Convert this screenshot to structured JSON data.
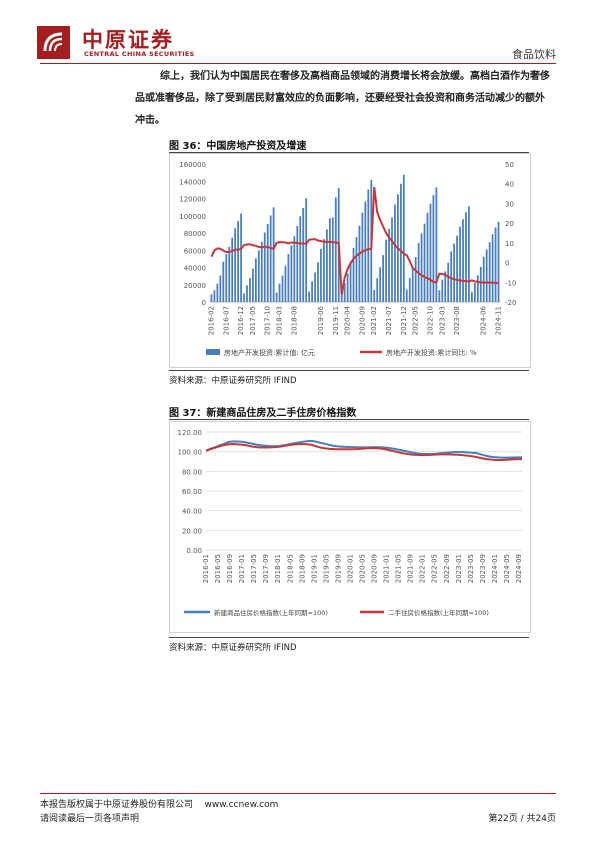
{
  "header": {
    "logo_text_cn": "中原证券",
    "logo_text_en": "CENTRAL CHINA SECURITIES",
    "category": "食品饮料"
  },
  "paragraph": {
    "line1": "综上，我们认为中国居民在奢侈及高档商品领域的消费增长将会放缓。高档白酒作为奢侈",
    "line2": "品或准奢侈品，除了受到居民财富效应的负面影响，还要经受社会投资和商务活动减少的额外",
    "line3": "冲击。"
  },
  "figure36": {
    "title": "图 36：中国房地产投资及增速",
    "source": "资料来源：中原证券研究所  IFIND",
    "chart_data": {
      "type": "bar",
      "categories": [
        "2016-02",
        "2016-03",
        "2016-04",
        "2016-05",
        "2016-06",
        "2016-07",
        "2016-08",
        "2016-09",
        "2016-10",
        "2016-11",
        "2016-12",
        "2017-02",
        "2017-03",
        "2017-04",
        "2017-05",
        "2017-06",
        "2017-07",
        "2017-08",
        "2017-09",
        "2017-10",
        "2017-11",
        "2017-12",
        "2018-02",
        "2018-03",
        "2018-04",
        "2018-05",
        "2018-06",
        "2018-07",
        "2018-08",
        "2018-09",
        "2018-10",
        "2018-11",
        "2018-12",
        "2019-02",
        "2019-03",
        "2019-04",
        "2019-05",
        "2019-06",
        "2019-07",
        "2019-08",
        "2019-09",
        "2019-10",
        "2019-11",
        "2019-12",
        "2020-02",
        "2020-03",
        "2020-04",
        "2020-05",
        "2020-06",
        "2020-07",
        "2020-08",
        "2020-09",
        "2020-10",
        "2020-11",
        "2020-12",
        "2021-02",
        "2021-03",
        "2021-04",
        "2021-05",
        "2021-06",
        "2021-07",
        "2021-08",
        "2021-09",
        "2021-10",
        "2021-11",
        "2021-12",
        "2022-02",
        "2022-03",
        "2022-04",
        "2022-05",
        "2022-06",
        "2022-07",
        "2022-08",
        "2022-09",
        "2022-10",
        "2022-11",
        "2022-12",
        "2023-02",
        "2023-03",
        "2023-04",
        "2023-05",
        "2023-06",
        "2023-07",
        "2023-08",
        "2023-09",
        "2023-10",
        "2023-11",
        "2023-12",
        "2024-02",
        "2024-03",
        "2024-04",
        "2024-05",
        "2024-06",
        "2024-07",
        "2024-08",
        "2024-09",
        "2024-10",
        "2024-11"
      ],
      "xtick_labels": [
        "2016-02",
        "2016-07",
        "2016-12",
        "2017-05",
        "2017-10",
        "2018-03",
        "2018-08",
        "2019-01",
        "2019-06",
        "2019-11",
        "2020-04",
        "2020-09",
        "2021-02",
        "2021-07",
        "2021-12",
        "2022-05",
        "2022-10",
        "2023-03",
        "2023-08",
        "2024-01",
        "2024-06",
        "2024-11"
      ],
      "series": [
        {
          "name": "房地产开发投资:累计值: 亿元",
          "axis": "left",
          "color": "#4a7ebb",
          "values": [
            9025,
            13698,
            21206,
            30851,
            46631,
            55531,
            64023,
            74598,
            85477,
            93931,
            102581,
            9854,
            19292,
            27732,
            38592,
            50610,
            59761,
            69694,
            80644,
            90544,
            100387,
            109799,
            10962,
            21291,
            30592,
            42085,
            55531,
            65609,
            76202,
            88108,
            99409,
            108961,
            120264,
            12090,
            23803,
            34217,
            46075,
            61610,
            72843,
            84243,
            97149,
            98007,
            121265,
            132194,
            10115,
            21963,
            33103,
            45920,
            62780,
            75188,
            88454,
            103484,
            116556,
            130391,
            141443,
            13986,
            27576,
            40240,
            54318,
            72179,
            84895,
            98060,
            112931,
            124934,
            137086,
            147602,
            14499,
            27765,
            39154,
            52134,
            68314,
            79462,
            90809,
            103559,
            113945,
            123863,
            132895,
            13669,
            25974,
            35514,
            45701,
            58550,
            67717,
            76900,
            87269,
            95922,
            104045,
            110913,
            11842,
            22082,
            30928,
            40632,
            52529,
            60877,
            69284,
            78680,
            86309,
            93008
          ]
        },
        {
          "name": "房地产开发投资:累计同比: %",
          "axis": "right",
          "color": "#c0393c",
          "values": [
            3.0,
            6.2,
            7.2,
            7.0,
            6.1,
            5.3,
            5.4,
            5.8,
            6.6,
            6.5,
            6.9,
            8.9,
            9.1,
            9.3,
            8.8,
            8.5,
            7.9,
            7.8,
            8.1,
            7.8,
            7.5,
            7.0,
            9.9,
            10.4,
            10.3,
            10.2,
            9.7,
            10.2,
            10.1,
            9.9,
            9.7,
            9.7,
            9.5,
            11.6,
            11.8,
            11.9,
            11.2,
            10.9,
            10.6,
            10.5,
            10.5,
            10.3,
            10.2,
            9.9,
            -16.3,
            -7.7,
            -3.3,
            -0.3,
            1.9,
            3.4,
            4.6,
            5.6,
            6.3,
            6.8,
            7.0,
            38.3,
            25.6,
            21.6,
            18.3,
            15.0,
            12.7,
            10.9,
            8.8,
            7.2,
            6.0,
            4.4,
            3.7,
            0.7,
            -2.7,
            -4.0,
            -5.4,
            -6.4,
            -7.4,
            -8.0,
            -8.8,
            -9.8,
            -10.0,
            -5.7,
            -5.8,
            -6.2,
            -7.2,
            -7.9,
            -8.5,
            -8.8,
            -9.1,
            -9.3,
            -9.4,
            -9.6,
            -9.0,
            -9.5,
            -9.8,
            -10.1,
            -10.1,
            -10.2,
            -10.2,
            -10.1,
            -10.3,
            -10.4
          ]
        }
      ],
      "y_left": {
        "ticks": [
          0,
          20000,
          40000,
          60000,
          80000,
          100000,
          120000,
          140000,
          160000
        ],
        "range": [
          0,
          160000
        ]
      },
      "y_right": {
        "ticks": [
          -20,
          -10,
          0,
          10,
          20,
          30,
          40,
          50
        ],
        "range": [
          -20,
          50
        ]
      },
      "legend": [
        {
          "label": "房地产开发投资:累计值: 亿元",
          "color": "#4a7ebb",
          "kind": "bar"
        },
        {
          "label": "房地产开发投资:累计同比: %",
          "color": "#c0393c",
          "kind": "line"
        }
      ],
      "legend_position": "bottom",
      "grid": false
    }
  },
  "figure37": {
    "title": "图 37：新建商品住房及二手住房价格指数",
    "source": "资料来源：中原证券研究所  IFIND",
    "chart_data": {
      "type": "line",
      "x_start": "2016-01",
      "x_end": "2024-10",
      "xtick_labels": [
        "2016-01",
        "2016-05",
        "2016-09",
        "2017-01",
        "2017-05",
        "2017-09",
        "2018-01",
        "2018-05",
        "2018-09",
        "2019-01",
        "2019-05",
        "2019-09",
        "2020-01",
        "2020-05",
        "2020-09",
        "2021-01",
        "2021-05",
        "2021-09",
        "2022-01",
        "2022-05",
        "2022-09",
        "2023-01",
        "2023-05",
        "2023-09",
        "2024-01",
        "2024-05",
        "2024-09"
      ],
      "series": [
        {
          "name": "新建商品住房价格指数(上年同期=100)",
          "color": "#4a7ebb",
          "values": [
            101.0,
            103.0,
            104.5,
            106.5,
            108.0,
            110.0,
            110.5,
            110.3,
            110.0,
            109.2,
            108.2,
            107.2,
            106.4,
            106.0,
            105.6,
            105.5,
            105.8,
            106.6,
            107.4,
            108.4,
            109.2,
            110.0,
            110.6,
            111.0,
            110.2,
            109.0,
            108.0,
            106.8,
            105.9,
            105.3,
            105.0,
            104.8,
            104.6,
            104.5,
            104.4,
            104.4,
            104.5,
            104.6,
            104.5,
            104.3,
            103.8,
            103.0,
            102.1,
            101.2,
            100.2,
            99.2,
            98.4,
            97.8,
            97.6,
            97.5,
            97.8,
            98.4,
            98.8,
            99.2,
            99.5,
            99.6,
            99.6,
            99.3,
            98.9,
            98.6,
            97.3,
            96.0,
            95.0,
            94.5,
            94.1,
            93.9,
            94.0,
            94.1,
            94.2,
            94.3
          ]
        },
        {
          "name": "二手住房价格指数(上年同期=100)",
          "color": "#c0393c",
          "values": [
            101.0,
            102.5,
            104.0,
            105.5,
            106.8,
            107.5,
            107.8,
            107.4,
            107.0,
            106.4,
            105.3,
            104.6,
            104.3,
            104.3,
            104.4,
            104.6,
            105.0,
            105.8,
            106.5,
            107.2,
            107.7,
            107.8,
            107.5,
            107.0,
            105.5,
            104.2,
            103.3,
            102.8,
            102.6,
            102.5,
            102.5,
            102.4,
            102.4,
            102.6,
            103.0,
            103.4,
            103.6,
            103.5,
            103.2,
            102.6,
            101.6,
            100.5,
            99.4,
            98.4,
            97.6,
            97.0,
            96.7,
            96.5,
            96.5,
            96.7,
            97.0,
            97.2,
            97.3,
            97.2,
            97.0,
            96.8,
            96.5,
            96.0,
            95.4,
            94.6,
            93.6,
            92.7,
            92.0,
            91.6,
            91.5,
            91.6,
            91.9,
            92.2,
            92.4,
            92.4
          ]
        }
      ],
      "y": {
        "ticks": [
          0,
          20,
          40,
          60,
          80,
          100,
          120
        ],
        "tick_labels": [
          "0.00",
          "20.00",
          "40.00",
          "60.00",
          "80.00",
          "100.00",
          "120.00"
        ],
        "range": [
          0,
          120
        ]
      },
      "legend": [
        {
          "label": "新建商品住房价格指数(上年同期=100)",
          "color": "#4a7ebb"
        },
        {
          "label": "二手住房价格指数(上年同期=100)",
          "color": "#c0393c"
        }
      ],
      "legend_position": "bottom",
      "grid": true
    }
  },
  "footer": {
    "copyright": "本报告版权属于中原证券股份有限公司",
    "website": "www.ccnew.com",
    "disclaimer": "请阅读最后一页各项声明",
    "page": "第22页 / 共24页"
  }
}
